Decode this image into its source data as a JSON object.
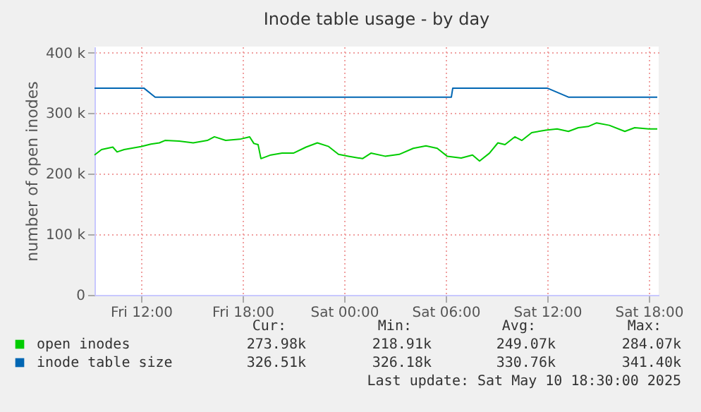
{
  "chart_data": {
    "type": "line",
    "title": "Inode table usage - by day",
    "ylabel": "number of open inodes",
    "xlim": [
      "2025-05-09T09:15",
      "2025-05-10T18:35"
    ],
    "xticks": [
      {
        "value": "2025-05-09T12:00",
        "label": "Fri 12:00"
      },
      {
        "value": "2025-05-09T18:00",
        "label": "Fri 18:00"
      },
      {
        "value": "2025-05-10T00:00",
        "label": "Sat 00:00"
      },
      {
        "value": "2025-05-10T06:00",
        "label": "Sat 06:00"
      },
      {
        "value": "2025-05-10T12:00",
        "label": "Sat 12:00"
      },
      {
        "value": "2025-05-10T18:00",
        "label": "Sat 18:00"
      }
    ],
    "ylim": [
      0,
      410
    ],
    "yticks": [
      {
        "value": 0,
        "label": "0"
      },
      {
        "value": 100,
        "label": "100 k"
      },
      {
        "value": 200,
        "label": "200 k"
      },
      {
        "value": 300,
        "label": "300 k"
      },
      {
        "value": 400,
        "label": "400 k"
      }
    ],
    "grid": true,
    "legend": "bottom",
    "series": [
      {
        "name": "open inodes",
        "color": "#00cc00",
        "x": [
          "2025-05-09T09:15",
          "2025-05-09T09:40",
          "2025-05-09T10:20",
          "2025-05-09T10:35",
          "2025-05-09T11:00",
          "2025-05-09T12:00",
          "2025-05-09T12:35",
          "2025-05-09T13:05",
          "2025-05-09T13:25",
          "2025-05-09T14:15",
          "2025-05-09T15:05",
          "2025-05-09T15:55",
          "2025-05-09T16:20",
          "2025-05-09T17:00",
          "2025-05-09T17:50",
          "2025-05-09T18:25",
          "2025-05-09T18:40",
          "2025-05-09T18:55",
          "2025-05-09T19:05",
          "2025-05-09T19:40",
          "2025-05-09T20:20",
          "2025-05-09T21:00",
          "2025-05-09T21:45",
          "2025-05-09T22:25",
          "2025-05-09T23:05",
          "2025-05-09T23:40",
          "2025-05-10T00:15",
          "2025-05-10T01:05",
          "2025-05-10T01:35",
          "2025-05-10T02:25",
          "2025-05-10T03:15",
          "2025-05-10T04:05",
          "2025-05-10T04:50",
          "2025-05-10T05:30",
          "2025-05-10T06:05",
          "2025-05-10T06:55",
          "2025-05-10T07:35",
          "2025-05-10T08:00",
          "2025-05-10T08:35",
          "2025-05-10T09:05",
          "2025-05-10T09:30",
          "2025-05-10T10:05",
          "2025-05-10T10:30",
          "2025-05-10T11:05",
          "2025-05-10T11:55",
          "2025-05-10T12:35",
          "2025-05-10T13:15",
          "2025-05-10T13:50",
          "2025-05-10T14:25",
          "2025-05-10T14:55",
          "2025-05-10T15:40",
          "2025-05-10T16:35",
          "2025-05-10T17:10",
          "2025-05-10T18:00",
          "2025-05-10T18:30"
        ],
        "values": [
          231,
          240,
          244,
          236,
          240,
          245,
          249,
          251,
          255,
          254,
          251,
          255,
          261,
          255,
          257,
          261,
          250,
          248,
          225,
          231,
          234,
          234,
          244,
          251,
          245,
          232,
          229,
          225,
          234,
          229,
          232,
          242,
          246,
          242,
          229,
          226,
          231,
          221,
          234,
          251,
          248,
          261,
          255,
          268,
          272,
          274,
          270,
          276,
          278,
          284,
          280,
          270,
          276,
          274,
          274
        ]
      },
      {
        "name": "inode table size",
        "color": "#0066b3",
        "x": [
          "2025-05-09T09:15",
          "2025-05-09T12:10",
          "2025-05-09T12:50",
          "2025-05-10T06:20",
          "2025-05-10T06:25",
          "2025-05-10T12:00",
          "2025-05-10T13:15",
          "2025-05-10T18:30"
        ],
        "values": [
          341.4,
          341.4,
          326.5,
          326.5,
          341.4,
          341.4,
          326.5,
          326.5
        ]
      }
    ],
    "annotations": [
      "Cur:",
      "Min:",
      "Avg:",
      "Max:",
      "273.98k",
      "218.91k",
      "249.07k",
      "284.07k",
      "326.51k",
      "326.18k",
      "330.76k",
      "341.40k",
      "Last update:  Sat May 10 18:30:00 2025"
    ]
  }
}
